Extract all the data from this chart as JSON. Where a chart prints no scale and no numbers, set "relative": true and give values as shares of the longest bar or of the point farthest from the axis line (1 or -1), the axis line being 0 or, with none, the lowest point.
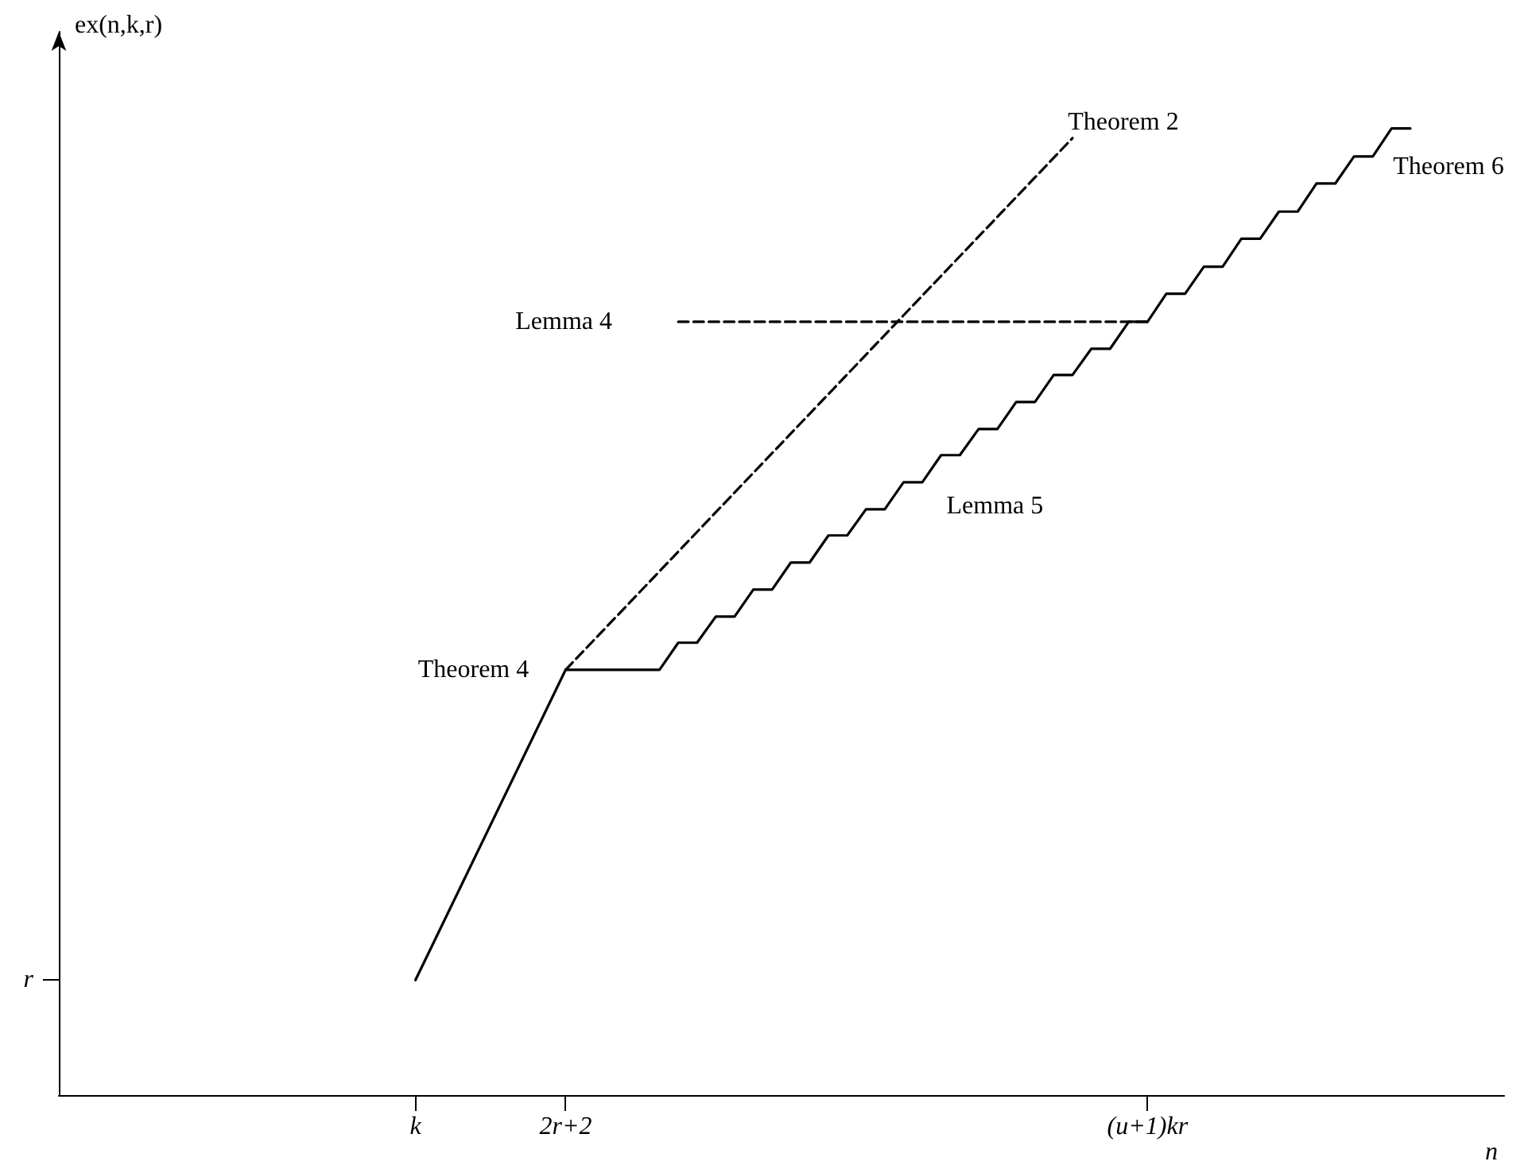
{
  "chart_data": {
    "type": "line",
    "relative": true,
    "xlabel": "n",
    "ylabel": "ex(n,k,r)",
    "categories": [
      null,
      null,
      null,
      null,
      null,
      null,
      null,
      null,
      null,
      null,
      null,
      null,
      null,
      null,
      null,
      null,
      null,
      null,
      null,
      "k",
      null,
      null,
      null,
      null,
      null,
      null,
      null,
      "2r+2",
      null,
      null,
      null,
      null,
      null,
      null,
      null,
      null,
      null,
      null,
      null,
      null,
      null,
      null,
      null,
      null,
      null,
      null,
      null,
      null,
      null,
      null,
      null,
      null,
      null,
      null,
      null,
      null,
      null,
      null,
      "(u+1)kr",
      null,
      null,
      null,
      null,
      null,
      null,
      null,
      null,
      null,
      null,
      null,
      null,
      null,
      null,
      null,
      null,
      null,
      null,
      null
    ],
    "annotations": [
      "r"
    ],
    "grid": false,
    "legend": false,
    "marker": "none",
    "series": [
      {
        "name": "Theorem 4",
        "color": "#000000",
        "line_style": "solid",
        "values": [
          null,
          null,
          null,
          null,
          null,
          null,
          null,
          null,
          null,
          null,
          null,
          null,
          null,
          null,
          null,
          null,
          null,
          null,
          null,
          0.119,
          null,
          null,
          null,
          null,
          null,
          null,
          null,
          0.44,
          null,
          null,
          null,
          null,
          null,
          null,
          null,
          null,
          null,
          null,
          null,
          null,
          null,
          null,
          null,
          null,
          null,
          null,
          null,
          null,
          null,
          null,
          null,
          null,
          null,
          null,
          null,
          null,
          null,
          null,
          null,
          null,
          null,
          null,
          null,
          null,
          null,
          null,
          null,
          null,
          null,
          null,
          null,
          null,
          null,
          null,
          null,
          null,
          null,
          null
        ]
      },
      {
        "name": "Theorem 2",
        "color": "#000000",
        "line_style": "dashed",
        "values": [
          null,
          null,
          null,
          null,
          null,
          null,
          null,
          null,
          null,
          null,
          null,
          null,
          null,
          null,
          null,
          null,
          null,
          null,
          null,
          null,
          null,
          null,
          null,
          null,
          null,
          null,
          null,
          0.44,
          null,
          null,
          null,
          null,
          null,
          null,
          null,
          null,
          null,
          null,
          null,
          null,
          null,
          null,
          null,
          null,
          null,
          null,
          null,
          null,
          null,
          null,
          null,
          null,
          null,
          null,
          0.99,
          null,
          null,
          null,
          null,
          null,
          null,
          null,
          null,
          null,
          null,
          null,
          null,
          null,
          null,
          null,
          null,
          null,
          null,
          null,
          null,
          null,
          null,
          null
        ]
      },
      {
        "name": "Lemma 4",
        "color": "#000000",
        "line_style": "dashed",
        "values": [
          null,
          null,
          null,
          null,
          null,
          null,
          null,
          null,
          null,
          null,
          null,
          null,
          null,
          null,
          null,
          null,
          null,
          null,
          null,
          null,
          null,
          null,
          null,
          null,
          null,
          null,
          null,
          null,
          null,
          null,
          null,
          null,
          null,
          0.8,
          null,
          null,
          null,
          null,
          null,
          null,
          null,
          null,
          null,
          null,
          null,
          null,
          null,
          null,
          null,
          null,
          null,
          null,
          null,
          null,
          null,
          null,
          null,
          null,
          0.8,
          null,
          null,
          null,
          null,
          null,
          null,
          null,
          null,
          null,
          null,
          null,
          null,
          null,
          null,
          null,
          null,
          null,
          null,
          null
        ]
      },
      {
        "name": "Lemma 5",
        "color": "#000000",
        "line_style": "solid",
        "values": [
          null,
          null,
          null,
          null,
          null,
          null,
          null,
          null,
          null,
          null,
          null,
          null,
          null,
          null,
          null,
          null,
          null,
          null,
          null,
          null,
          null,
          null,
          null,
          null,
          null,
          null,
          null,
          0.44,
          0.44,
          0.44,
          0.44,
          0.44,
          0.44,
          0.468,
          0.468,
          0.495,
          0.495,
          0.523,
          0.523,
          0.551,
          0.551,
          0.579,
          0.579,
          0.606,
          0.606,
          0.634,
          0.634,
          0.662,
          0.662,
          0.689,
          0.689,
          0.717,
          0.717,
          0.745,
          0.745,
          0.772,
          0.772,
          0.8,
          0.8,
          null,
          null,
          null,
          null,
          null,
          null,
          null,
          null,
          null,
          null,
          null,
          null,
          null,
          null,
          null,
          null,
          null,
          null,
          null
        ]
      },
      {
        "name": "Theorem 6",
        "color": "#000000",
        "line_style": "solid",
        "values": [
          null,
          null,
          null,
          null,
          null,
          null,
          null,
          null,
          null,
          null,
          null,
          null,
          null,
          null,
          null,
          null,
          null,
          null,
          null,
          null,
          null,
          null,
          null,
          null,
          null,
          null,
          null,
          null,
          null,
          null,
          null,
          null,
          null,
          null,
          null,
          null,
          null,
          null,
          null,
          null,
          null,
          null,
          null,
          null,
          null,
          null,
          null,
          null,
          null,
          null,
          null,
          null,
          null,
          null,
          null,
          null,
          null,
          null,
          0.8,
          0.829,
          0.829,
          0.857,
          0.857,
          0.886,
          0.886,
          0.914,
          0.914,
          0.943,
          0.943,
          0.971,
          0.971,
          1,
          1,
          null,
          null,
          null,
          null,
          null
        ]
      }
    ]
  }
}
